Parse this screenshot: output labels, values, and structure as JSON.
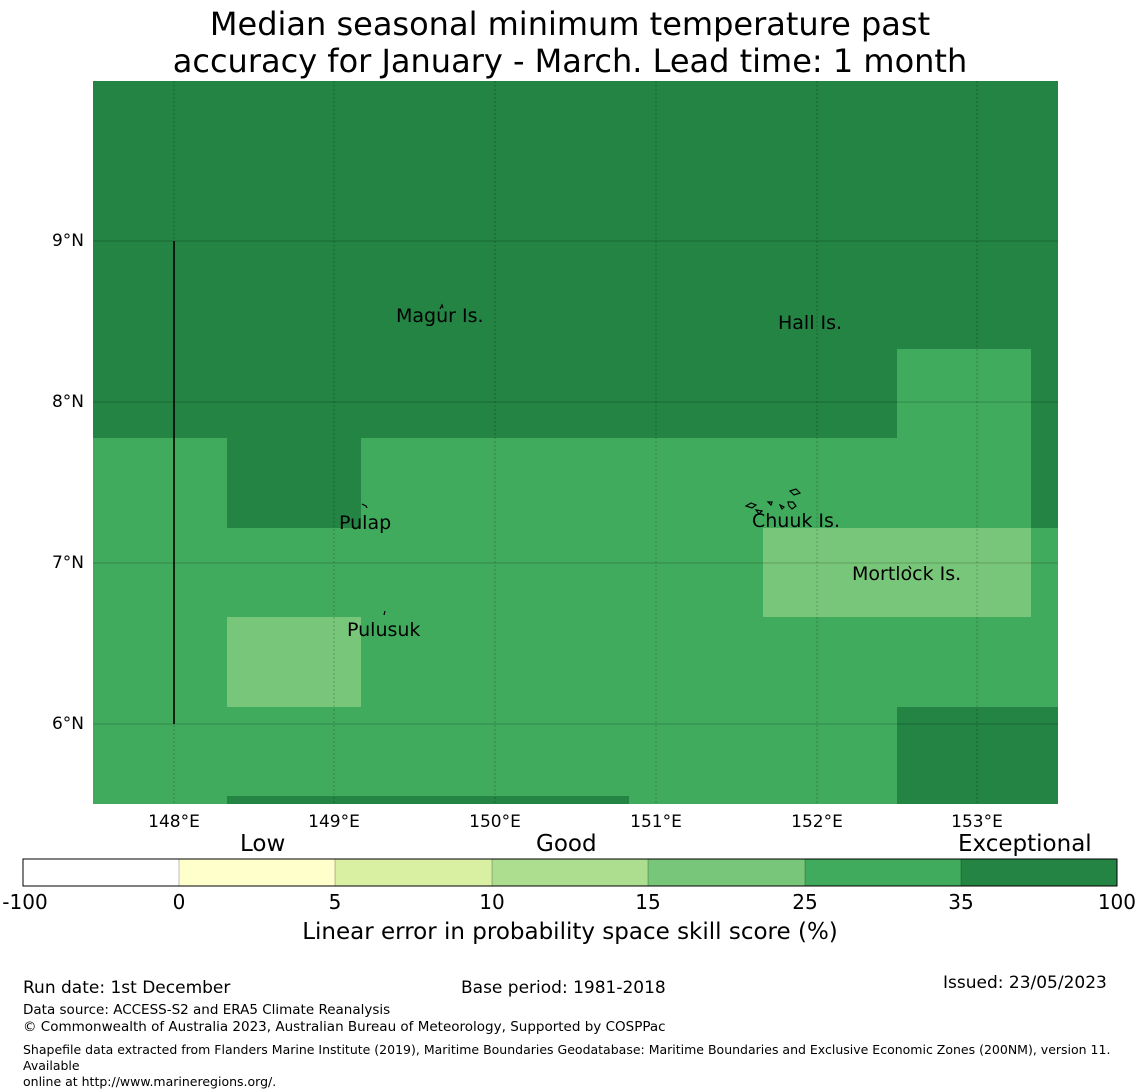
{
  "title": {
    "line1": "Median seasonal minimum temperature past",
    "line2": "accuracy for January - March. Lead time: 1 month"
  },
  "map": {
    "lat_labels": [
      "9°N",
      "8°N",
      "7°N",
      "6°N"
    ],
    "lon_labels": [
      "148°E",
      "149°E",
      "150°E",
      "151°E",
      "152°E",
      "153°E"
    ],
    "place_labels": {
      "magur": "Magur Is.",
      "hall": "Hall Is.",
      "pulap": "Pulap",
      "chuuk": "Chuuk Is.",
      "mortlock": "Mortlock Is.",
      "pulusuk": "Pulusuk"
    },
    "colors": {
      "exceptional": "#238443",
      "very_good": "#41ab5d",
      "good": "#78c679"
    }
  },
  "colorbar": {
    "categories": {
      "low": "Low",
      "good": "Good",
      "exceptional": "Exceptional"
    },
    "ticks": [
      "-100",
      "0",
      "5",
      "10",
      "15",
      "25",
      "35",
      "100"
    ],
    "colors": [
      "#ffffff",
      "#ffffcc",
      "#d9f0a3",
      "#addd8e",
      "#78c679",
      "#41ab5d",
      "#238443"
    ],
    "label": "Linear error in probability space skill score (%)"
  },
  "footer": {
    "run_date": "Run date: 1st December",
    "base_period": "Base period: 1981-2018",
    "issued": "Issued: 23/05/2023",
    "data_source": "Data source: ACCESS-S2 and ERA5 Climate Reanalysis",
    "copyright": "© Commonwealth of Australia 2023, Australian Bureau of Meteorology, Supported by COSPPac",
    "shapefile_line1": "Shapefile data extracted from Flanders Marine Institute (2019), Maritime Boundaries Geodatabase: Maritime Boundaries and Exclusive Economic Zones (200NM), version 11. Available",
    "shapefile_line2": "online at http://www.marineregions.org/."
  }
}
